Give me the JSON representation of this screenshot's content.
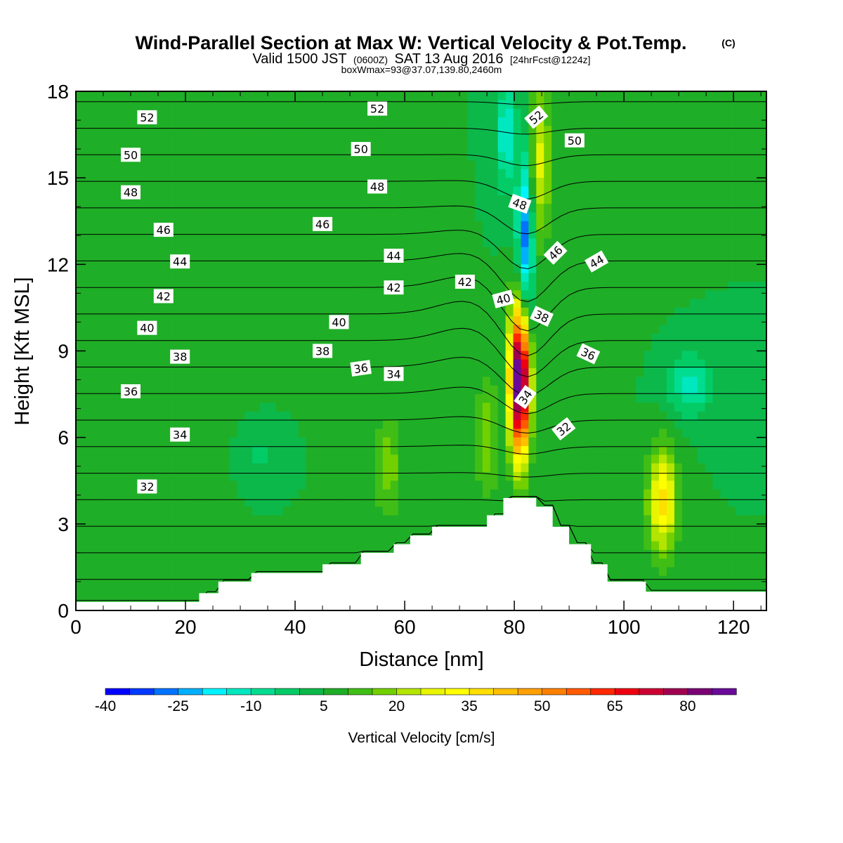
{
  "title": {
    "main": "Wind-Parallel Section at Max W: Vertical Velocity & Pot.Temp.",
    "copyright": "(C)",
    "valid_prefix": "Valid 1500 JST",
    "valid_utc": "(0600Z)",
    "valid_suffix": "SAT 13 Aug 2016",
    "forecast": "[24hrFcst@1224z]",
    "box_info": "boxWmax=93@37.07,139.80,2460m"
  },
  "colors": {
    "palette": [
      "#0000ff",
      "#0039ff",
      "#0073ff",
      "#00b0ff",
      "#00f4ff",
      "#00e8c0",
      "#00dd91",
      "#03cc66",
      "#0db84a",
      "#1fae27",
      "#40be16",
      "#73d000",
      "#b4e500",
      "#e9f500",
      "#ffff00",
      "#ffdf00",
      "#ffc000",
      "#ffa000",
      "#ff8000",
      "#ff5a00",
      "#ff2800",
      "#ee0010",
      "#cc0033",
      "#a00050",
      "#7a0073",
      "#6a0a9a"
    ],
    "terrain": "#ffffff",
    "contour": "#000000"
  },
  "chart_data": {
    "type": "heatmap",
    "xlabel": "Distance [nm]",
    "ylabel": "Height [Kft MSL]",
    "xlim": [
      0,
      126
    ],
    "ylim": [
      0,
      18
    ],
    "xticks": [
      "0",
      "20",
      "40",
      "60",
      "80",
      "100",
      "120"
    ],
    "yticks": [
      "0",
      "3",
      "6",
      "9",
      "12",
      "15",
      "18"
    ],
    "grid": false,
    "colorbar": {
      "title": "Vertical Velocity [cm/s]",
      "levels": [
        -40,
        -35,
        -30,
        -25,
        -20,
        -15,
        -10,
        -5,
        0,
        5,
        10,
        15,
        20,
        25,
        30,
        35,
        40,
        45,
        50,
        55,
        60,
        65,
        70,
        75,
        80,
        85,
        90
      ],
      "tick_labels": [
        "-40",
        "-25",
        "-10",
        "5",
        "20",
        "35",
        "50",
        "65",
        "80"
      ]
    },
    "terrain_profile": {
      "x": [
        0,
        22.5,
        22.5,
        26,
        26,
        32,
        32,
        45,
        45,
        52,
        52,
        58,
        58,
        61,
        61,
        65,
        65,
        75,
        75,
        78,
        78,
        84,
        84,
        87,
        87,
        90,
        90,
        94,
        94,
        97,
        97,
        104,
        104,
        126
      ],
      "height": [
        0.3,
        0.3,
        0.6,
        0.6,
        1.0,
        1.0,
        1.3,
        1.3,
        1.6,
        1.6,
        2.0,
        2.0,
        2.3,
        2.3,
        2.6,
        2.6,
        2.9,
        2.9,
        3.3,
        3.3,
        3.9,
        3.9,
        3.6,
        3.6,
        2.9,
        2.9,
        2.3,
        2.3,
        1.6,
        1.6,
        1.0,
        1.0,
        0.65,
        0.65
      ]
    },
    "w_features": [
      {
        "x": 81,
        "z": 8,
        "sx": 1.8,
        "sz": 2.6,
        "w": 93
      },
      {
        "x": 84.5,
        "z": 15.5,
        "sx": 2.2,
        "sz": 2.8,
        "w": 22
      },
      {
        "x": 107,
        "z": 3.8,
        "sx": 2.6,
        "sz": 1.8,
        "w": 32
      },
      {
        "x": 57,
        "z": 5.0,
        "sx": 2.5,
        "sz": 1.8,
        "w": 13
      },
      {
        "x": 75,
        "z": 6.0,
        "sx": 2.0,
        "sz": 2.2,
        "w": 14
      },
      {
        "x": 82,
        "z": 12.8,
        "sx": 1.5,
        "sz": 3.2,
        "w": -36
      },
      {
        "x": 78.5,
        "z": 16.5,
        "sx": 1.6,
        "sz": 1.8,
        "w": -22
      },
      {
        "x": 112,
        "z": 7.8,
        "sx": 4.2,
        "sz": 1.0,
        "w": -16
      },
      {
        "x": 34,
        "z": 5.4,
        "sx": 3.8,
        "sz": 1.1,
        "w": -6
      },
      {
        "x": 20,
        "z": 12,
        "sx": 14,
        "sz": 6,
        "w": 3
      },
      {
        "x": 98,
        "z": 14,
        "sx": 6,
        "sz": 4,
        "w": 2
      }
    ],
    "theta_contour_labels": [
      {
        "text": "52",
        "x": 13,
        "z": 17.1,
        "angle": 0
      },
      {
        "text": "50",
        "x": 10,
        "z": 15.8,
        "angle": 0
      },
      {
        "text": "48",
        "x": 10,
        "z": 14.5,
        "angle": 0
      },
      {
        "text": "46",
        "x": 16,
        "z": 13.2,
        "angle": 0
      },
      {
        "text": "44",
        "x": 19,
        "z": 12.1,
        "angle": 0
      },
      {
        "text": "42",
        "x": 16,
        "z": 10.9,
        "angle": 0
      },
      {
        "text": "40",
        "x": 13,
        "z": 9.8,
        "angle": 0
      },
      {
        "text": "38",
        "x": 19,
        "z": 8.8,
        "angle": 0
      },
      {
        "text": "36",
        "x": 10,
        "z": 7.6,
        "angle": 0
      },
      {
        "text": "34",
        "x": 19,
        "z": 6.1,
        "angle": 0
      },
      {
        "text": "32",
        "x": 13,
        "z": 4.3,
        "angle": 0
      },
      {
        "text": "52",
        "x": 55,
        "z": 17.4,
        "angle": 0
      },
      {
        "text": "50",
        "x": 52,
        "z": 16.0,
        "angle": 0
      },
      {
        "text": "48",
        "x": 55,
        "z": 14.7,
        "angle": 0
      },
      {
        "text": "46",
        "x": 45,
        "z": 13.4,
        "angle": 0
      },
      {
        "text": "44",
        "x": 58,
        "z": 12.3,
        "angle": 0
      },
      {
        "text": "42",
        "x": 58,
        "z": 11.2,
        "angle": 0
      },
      {
        "text": "40",
        "x": 48,
        "z": 10.0,
        "angle": 0
      },
      {
        "text": "38",
        "x": 45,
        "z": 9.0,
        "angle": 0
      },
      {
        "text": "36",
        "x": 52,
        "z": 8.4,
        "angle": -8
      },
      {
        "text": "34",
        "x": 58,
        "z": 8.2,
        "angle": 0
      },
      {
        "text": "42",
        "x": 71,
        "z": 11.4,
        "angle": 0
      },
      {
        "text": "40",
        "x": 78,
        "z": 10.8,
        "angle": -15
      },
      {
        "text": "52",
        "x": 84,
        "z": 17.1,
        "angle": -40
      },
      {
        "text": "50",
        "x": 91,
        "z": 16.3,
        "angle": 0
      },
      {
        "text": "48",
        "x": 81,
        "z": 14.1,
        "angle": 20
      },
      {
        "text": "46",
        "x": 87.5,
        "z": 12.4,
        "angle": -45
      },
      {
        "text": "44",
        "x": 95,
        "z": 12.1,
        "angle": -30
      },
      {
        "text": "38",
        "x": 85,
        "z": 10.2,
        "angle": 25
      },
      {
        "text": "36",
        "x": 93.5,
        "z": 8.9,
        "angle": 25
      },
      {
        "text": "34",
        "x": 82,
        "z": 7.4,
        "angle": -55
      },
      {
        "text": "32",
        "x": 89,
        "z": 6.3,
        "angle": -38
      }
    ]
  }
}
